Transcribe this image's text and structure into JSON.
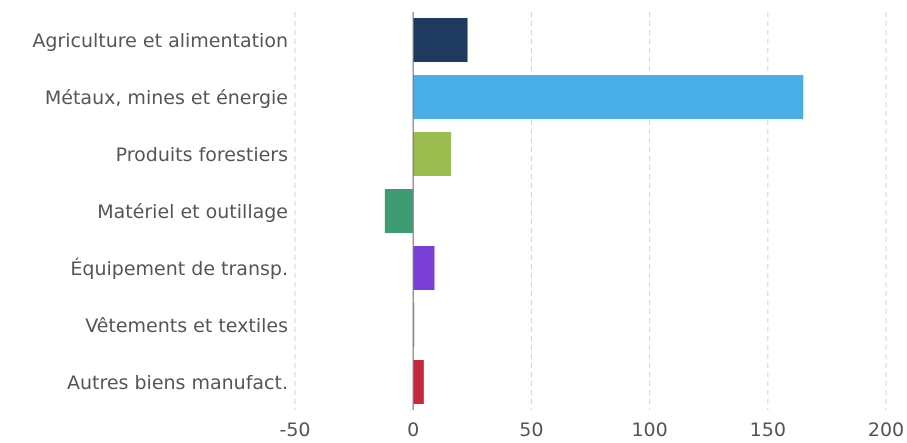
{
  "chart_data": {
    "type": "bar",
    "orientation": "horizontal",
    "categories": [
      "Agriculture et alimentation",
      "Métaux, mines et énergie",
      "Produits forestiers",
      "Matériel et outillage",
      "Équipement de transp.",
      "Vêtements et textiles",
      "Autres biens manufact."
    ],
    "values": [
      23,
      165,
      16,
      -12,
      9,
      0.5,
      4.5
    ],
    "colors": [
      "#1f3a5f",
      "#4aaee8",
      "#9bbd4f",
      "#3f9b72",
      "#7a3fd6",
      "#b9a7e6",
      "#c8283f"
    ],
    "xlim": [
      -50,
      200
    ],
    "xticks": [
      -50,
      0,
      50,
      100,
      150,
      200
    ],
    "xtick_labels": [
      "-50",
      "0",
      "50",
      "100",
      "150",
      "200"
    ],
    "title": "",
    "xlabel": "",
    "ylabel": "",
    "grid": "vertical dashed",
    "legend": "none"
  }
}
